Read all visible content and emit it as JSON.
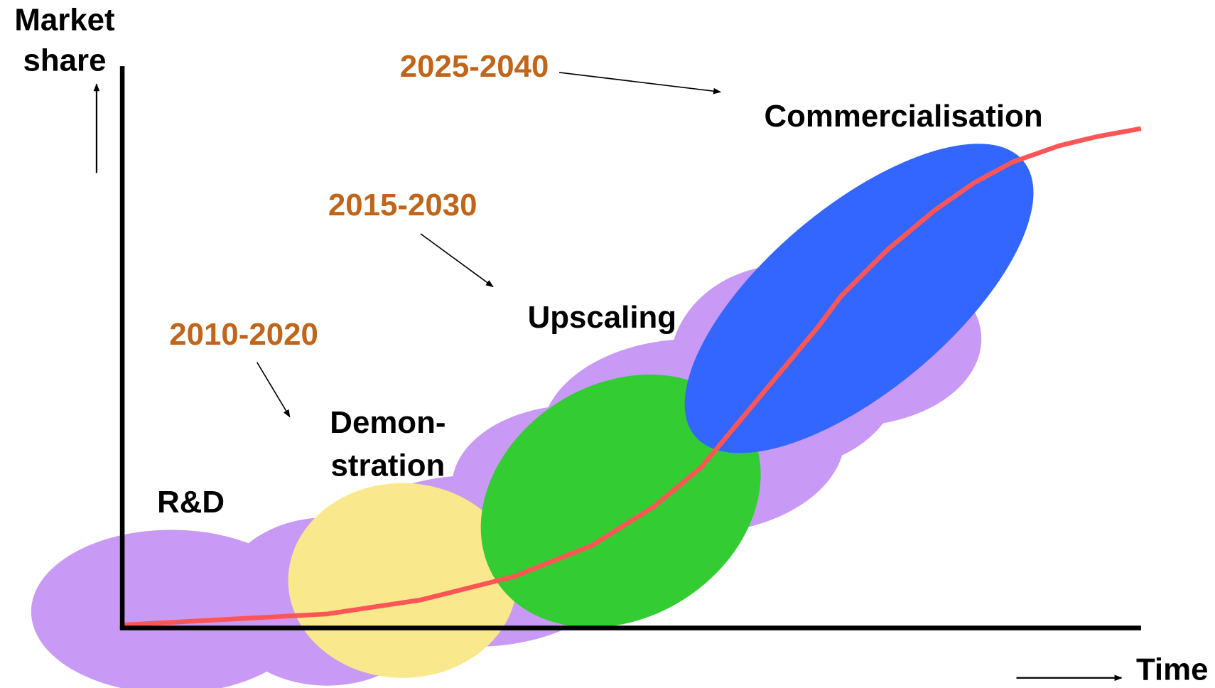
{
  "axes": {
    "y_label": [
      "Market",
      "share"
    ],
    "x_label": "Time"
  },
  "phases": [
    {
      "label": [
        "R&D"
      ]
    },
    {
      "label": [
        "Demon-",
        "stration"
      ],
      "period": "2010-2020"
    },
    {
      "label": [
        "Upscaling"
      ],
      "period": "2015-2030"
    },
    {
      "label": [
        "Commercialisation"
      ],
      "period": "2025-2040"
    }
  ]
}
